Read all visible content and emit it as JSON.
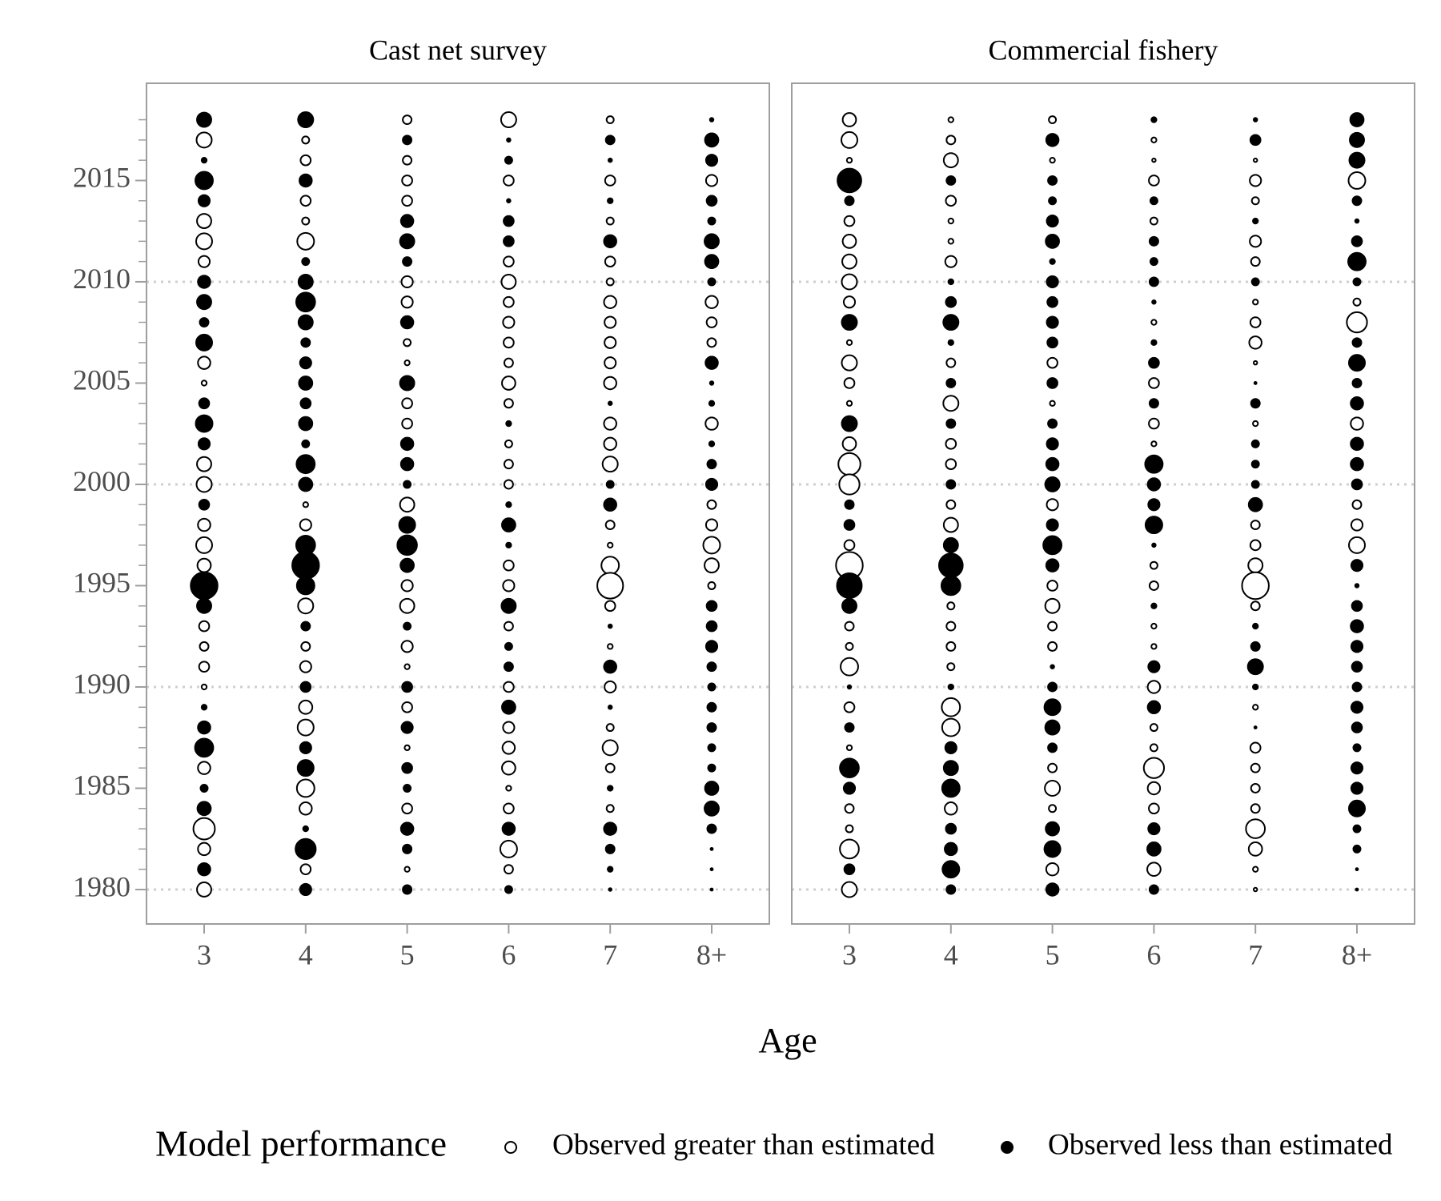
{
  "chart_data": [
    {
      "type": "bubble",
      "title": "Cast net survey",
      "categories": [
        "3",
        "4",
        "5",
        "6",
        "7",
        "8+"
      ],
      "y": [
        2018,
        2017,
        2016,
        2015,
        2014,
        2013,
        2012,
        2011,
        2010,
        2009,
        2008,
        2007,
        2006,
        2005,
        2004,
        2003,
        2002,
        2001,
        2000,
        1999,
        1998,
        1997,
        1996,
        1995,
        1994,
        1993,
        1992,
        1991,
        1990,
        1989,
        1988,
        1987,
        1986,
        1985,
        1984,
        1983,
        1982,
        1981,
        1980
      ],
      "ylim": [
        1978.3,
        2019.8
      ],
      "yticks": [
        1980,
        1985,
        1990,
        1995,
        2000,
        2005,
        2010,
        2015
      ],
      "values": [
        [
          -0.8,
          0.9,
          -0.1,
          -1.2,
          -0.5,
          0.8,
          1.0,
          0.5,
          -0.6,
          -0.8,
          -0.3,
          -1.0,
          0.6,
          0.1,
          -0.4,
          -1.1,
          -0.5,
          0.8,
          0.9,
          -0.4,
          0.6,
          1.0,
          0.7,
          -2.8,
          -0.8,
          0.4,
          0.3,
          0.4,
          0.1,
          -0.1,
          -0.6,
          -1.3,
          0.6,
          -0.2,
          -0.7,
          1.8,
          0.6,
          -0.6,
          0.8
        ],
        [
          -0.9,
          0.2,
          0.4,
          -0.6,
          0.4,
          0.2,
          1.1,
          -0.2,
          -0.8,
          -1.4,
          -0.8,
          -0.3,
          -0.5,
          -0.7,
          -0.4,
          -0.7,
          -0.2,
          -1.3,
          -0.7,
          0.1,
          0.5,
          -1.4,
          -2.8,
          -1.2,
          0.9,
          -0.3,
          0.3,
          0.5,
          -0.4,
          0.7,
          1.0,
          -0.5,
          -1.0,
          1.2,
          0.6,
          -0.1,
          -1.6,
          0.4,
          -0.5
        ],
        [
          0.3,
          -0.3,
          0.3,
          0.4,
          0.4,
          -0.6,
          -0.8,
          -0.3,
          0.5,
          0.5,
          -0.6,
          0.2,
          0.1,
          -0.8,
          0.4,
          0.4,
          -0.6,
          -0.6,
          -0.2,
          0.8,
          -1.0,
          -1.5,
          -0.7,
          0.5,
          0.8,
          -0.2,
          0.5,
          0.1,
          -0.4,
          0.4,
          -0.5,
          0.1,
          -0.4,
          -0.2,
          0.4,
          -0.6,
          -0.3,
          0.1,
          -0.3
        ],
        [
          0.9,
          -0.05,
          -0.2,
          0.4,
          -0.05,
          -0.4,
          -0.4,
          0.4,
          0.8,
          0.4,
          0.5,
          0.4,
          0.3,
          0.7,
          0.3,
          -0.1,
          0.2,
          0.3,
          0.3,
          -0.1,
          -0.7,
          -0.1,
          0.4,
          0.5,
          -0.8,
          0.3,
          -0.2,
          -0.3,
          0.4,
          -0.7,
          0.5,
          0.6,
          0.7,
          0.1,
          0.4,
          -0.6,
          1.1,
          0.3,
          -0.2
        ],
        [
          0.2,
          -0.3,
          -0.05,
          0.4,
          -0.1,
          0.2,
          -0.6,
          0.4,
          0.2,
          0.6,
          0.5,
          0.5,
          0.5,
          0.6,
          -0.05,
          0.6,
          0.6,
          0.9,
          -0.2,
          -0.6,
          0.3,
          0.1,
          1.2,
          2.6,
          0.4,
          -0.05,
          0.1,
          -0.6,
          0.5,
          -0.05,
          0.2,
          0.9,
          0.3,
          -0.1,
          0.2,
          -0.6,
          -0.3,
          -0.1,
          -0.03
        ],
        [
          -0.05,
          -0.7,
          -0.5,
          0.5,
          -0.4,
          -0.2,
          -0.8,
          -0.7,
          -0.2,
          0.6,
          0.4,
          0.3,
          -0.6,
          -0.05,
          -0.1,
          0.6,
          -0.1,
          -0.3,
          -0.5,
          0.3,
          0.5,
          1.1,
          0.8,
          0.2,
          -0.4,
          -0.4,
          -0.5,
          -0.3,
          -0.2,
          -0.3,
          -0.3,
          -0.2,
          -0.2,
          -0.7,
          -0.8,
          -0.3,
          -0.02,
          -0.02,
          -0.02
        ]
      ]
    },
    {
      "type": "bubble",
      "title": "Commercial fishery",
      "categories": [
        "3",
        "4",
        "5",
        "6",
        "7",
        "8+"
      ],
      "y": [
        2018,
        2017,
        2016,
        2015,
        2014,
        2013,
        2012,
        2011,
        2010,
        2009,
        2008,
        2007,
        2006,
        2005,
        2004,
        2003,
        2002,
        2001,
        2000,
        1999,
        1998,
        1997,
        1996,
        1995,
        1994,
        1993,
        1992,
        1991,
        1990,
        1989,
        1988,
        1987,
        1986,
        1985,
        1984,
        1983,
        1982,
        1981,
        1980
      ],
      "ylim": [
        1978.3,
        2019.8
      ],
      "yticks": [
        1980,
        1985,
        1990,
        1995,
        2000,
        2005,
        2010,
        2015
      ],
      "values": [
        [
          0.7,
          1.0,
          0.1,
          -2.2,
          -0.3,
          0.4,
          0.7,
          0.8,
          0.9,
          0.5,
          -0.9,
          0.1,
          0.9,
          0.4,
          0.1,
          -0.9,
          0.7,
          1.9,
          1.6,
          -0.3,
          -0.4,
          0.4,
          2.8,
          -2.4,
          -0.8,
          0.3,
          0.2,
          1.2,
          -0.05,
          0.4,
          -0.3,
          0.1,
          -1.4,
          -0.5,
          0.3,
          0.2,
          1.4,
          -0.4,
          0.9
        ],
        [
          0.1,
          0.3,
          0.8,
          -0.3,
          0.4,
          0.1,
          0.1,
          0.5,
          -0.1,
          -0.4,
          -0.9,
          -0.1,
          0.3,
          -0.3,
          0.9,
          -0.3,
          0.4,
          0.4,
          -0.3,
          0.3,
          0.8,
          -0.8,
          -2.2,
          -1.4,
          0.2,
          0.3,
          0.3,
          0.2,
          -0.1,
          1.3,
          1.2,
          -0.5,
          -0.8,
          -1.2,
          0.6,
          -0.4,
          -0.6,
          -1.1,
          -0.3
        ],
        [
          0.2,
          -0.6,
          0.1,
          -0.3,
          -0.2,
          -0.5,
          -0.7,
          -0.1,
          -0.5,
          -0.4,
          -0.5,
          -0.4,
          0.4,
          -0.4,
          0.1,
          -0.3,
          -0.5,
          -0.6,
          -0.8,
          0.5,
          -0.5,
          -1.3,
          -0.6,
          0.4,
          0.8,
          0.3,
          0.3,
          -0.05,
          -0.3,
          -1.0,
          -0.8,
          -0.3,
          0.3,
          0.9,
          0.2,
          -0.7,
          -1.0,
          0.6,
          -0.6
        ],
        [
          -0.1,
          0.1,
          0.05,
          0.4,
          -0.2,
          0.2,
          -0.3,
          -0.2,
          -0.3,
          -0.05,
          0.1,
          -0.1,
          -0.4,
          0.4,
          -0.3,
          0.4,
          0.1,
          -1.2,
          -0.6,
          -0.5,
          -1.1,
          -0.05,
          0.2,
          0.3,
          -0.1,
          0.1,
          0.1,
          -0.5,
          0.6,
          -0.6,
          0.2,
          0.2,
          1.6,
          0.6,
          0.4,
          -0.5,
          -0.7,
          0.7,
          -0.3
        ],
        [
          -0.05,
          -0.4,
          0.05,
          0.5,
          0.2,
          -0.1,
          0.5,
          0.3,
          -0.2,
          0.1,
          0.4,
          0.6,
          0.05,
          -0.02,
          -0.3,
          0.1,
          -0.2,
          -0.2,
          -0.2,
          -0.7,
          0.3,
          0.4,
          0.8,
          2.8,
          0.3,
          -0.1,
          -0.3,
          -0.9,
          -0.1,
          0.1,
          -0.02,
          0.4,
          0.3,
          0.3,
          0.3,
          1.4,
          0.7,
          0.1,
          0.05
        ],
        [
          -0.7,
          -0.8,
          -0.9,
          1.1,
          -0.3,
          -0.05,
          -0.4,
          -1.2,
          -0.2,
          0.2,
          1.6,
          -0.3,
          -1.0,
          -0.3,
          -0.6,
          0.6,
          -0.6,
          -0.6,
          -0.4,
          0.3,
          0.5,
          1.0,
          -0.5,
          -0.05,
          -0.4,
          -0.6,
          -0.5,
          -0.4,
          -0.3,
          -0.5,
          -0.4,
          -0.2,
          -0.5,
          -0.5,
          -1.0,
          -0.2,
          -0.2,
          -0.02,
          -0.02
        ]
      ]
    }
  ],
  "x_label": "Age",
  "legend": {
    "title": "Model performance",
    "entries": [
      {
        "name": "Observed greater than estimated",
        "fill": "#ffffff",
        "stroke": "#000000"
      },
      {
        "name": "Observed less than estimated",
        "fill": "#000000",
        "stroke": "#000000"
      }
    ]
  }
}
